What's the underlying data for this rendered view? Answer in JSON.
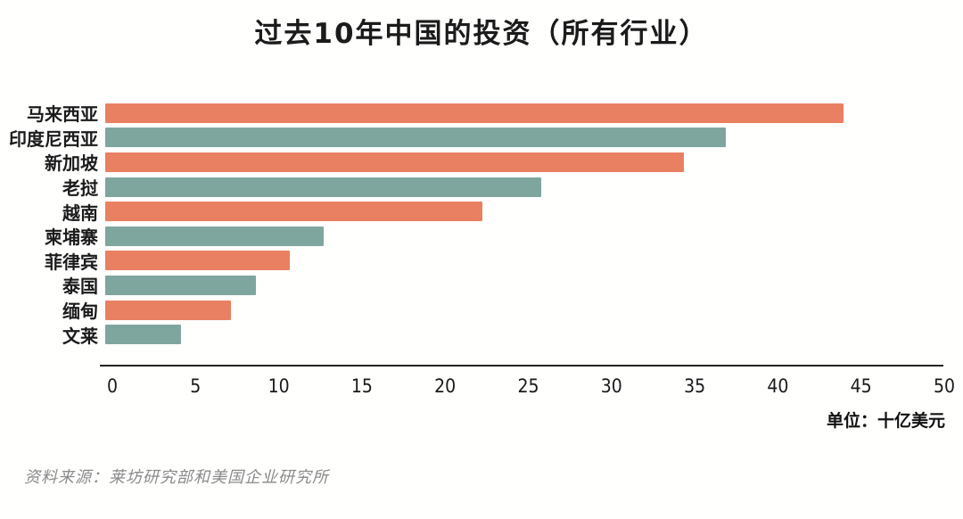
{
  "title": "过去10年中国的投资（所有行业）",
  "unit_label": "单位：十亿美元",
  "source": "资料来源：莱坊研究部和美国企业研究所",
  "colors": {
    "bar_orange": "#E98062",
    "bar_teal": "#7EA69F",
    "text": "#1b1b1b",
    "source_gray": "#8a8a8a"
  },
  "chart_data": {
    "type": "bar",
    "orientation": "horizontal",
    "title": "过去10年中国的投资（所有行业）",
    "xlabel": "单位：十亿美元",
    "ylabel": "",
    "categories": [
      "马来西亚",
      "印度尼西亚",
      "新加坡",
      "老挝",
      "越南",
      "柬埔寨",
      "菲律宾",
      "泰国",
      "缅甸",
      "文莱"
    ],
    "values": [
      44,
      37,
      34.5,
      26,
      22.5,
      13,
      11,
      9,
      7.5,
      4.5
    ],
    "bar_colors_alternate": [
      "#E98062",
      "#7EA69F"
    ],
    "xlim": [
      0,
      50
    ],
    "x_ticks": [
      0,
      5,
      10,
      15,
      20,
      25,
      30,
      35,
      40,
      45,
      50
    ],
    "grid": false,
    "legend_position": "none"
  }
}
